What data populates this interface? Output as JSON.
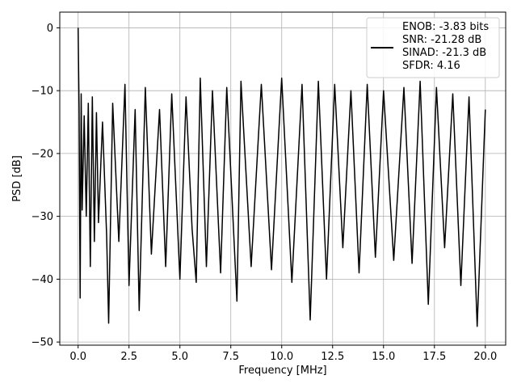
{
  "chart_data": {
    "type": "line",
    "xlabel": "Frequency [MHz]",
    "ylabel": "PSD [dB]",
    "xlim": [
      -0.9,
      21.0
    ],
    "ylim": [
      -50.5,
      2.5
    ],
    "x_ticks": [
      0.0,
      2.5,
      5.0,
      7.5,
      10.0,
      12.5,
      15.0,
      17.5,
      20.0
    ],
    "x_tick_labels": [
      "0.0",
      "2.5",
      "5.0",
      "7.5",
      "10.0",
      "12.5",
      "15.0",
      "17.5",
      "20.0"
    ],
    "y_ticks": [
      0,
      -10,
      -20,
      -30,
      -40,
      -50
    ],
    "y_tick_labels": [
      "0",
      "−10",
      "−20",
      "−30",
      "−40",
      "−50"
    ],
    "grid": true,
    "legend_position": "top-right",
    "legend_lines": [
      "ENOB: -3.83 bits",
      "SNR: -21.28 dB",
      "SINAD: -21.3 dB",
      "SFDR: 4.16"
    ],
    "series": [
      {
        "color": "#000000",
        "x": [
          0.0,
          0.05,
          0.1,
          0.15,
          0.2,
          0.3,
          0.4,
          0.5,
          0.6,
          0.7,
          0.8,
          0.9,
          1.0,
          1.2,
          1.4,
          1.5,
          1.7,
          2.0,
          2.3,
          2.5,
          2.8,
          3.0,
          3.3,
          3.6,
          4.0,
          4.3,
          4.6,
          5.0,
          5.3,
          5.6,
          5.8,
          6.0,
          6.3,
          6.6,
          7.0,
          7.3,
          7.8,
          8.0,
          8.5,
          9.0,
          9.5,
          10.0,
          10.5,
          11.0,
          11.4,
          11.8,
          12.2,
          12.6,
          13.0,
          13.4,
          13.8,
          14.2,
          14.6,
          15.0,
          15.5,
          16.0,
          16.4,
          16.8,
          17.2,
          17.6,
          18.0,
          18.4,
          18.8,
          19.2,
          19.6,
          20.0
        ],
        "y": [
          0.0,
          -13.0,
          -43.0,
          -10.5,
          -29.0,
          -14.0,
          -30.0,
          -12.0,
          -38.0,
          -11.0,
          -34.0,
          -13.5,
          -31.0,
          -15.0,
          -33.0,
          -47.0,
          -12.0,
          -34.0,
          -9.0,
          -41.0,
          -13.0,
          -45.0,
          -9.5,
          -36.0,
          -13.0,
          -38.0,
          -10.5,
          -40.0,
          -11.0,
          -32.0,
          -40.5,
          -8.0,
          -38.0,
          -10.0,
          -39.0,
          -9.5,
          -43.5,
          -8.5,
          -38.0,
          -9.0,
          -38.5,
          -8.0,
          -40.5,
          -9.0,
          -46.5,
          -8.5,
          -40.0,
          -9.0,
          -35.0,
          -10.0,
          -39.0,
          -9.0,
          -36.5,
          -10.0,
          -37.0,
          -9.5,
          -37.5,
          -8.5,
          -44.0,
          -9.5,
          -35.0,
          -10.5,
          -41.0,
          -11.0,
          -47.5,
          -13.0
        ]
      }
    ]
  }
}
